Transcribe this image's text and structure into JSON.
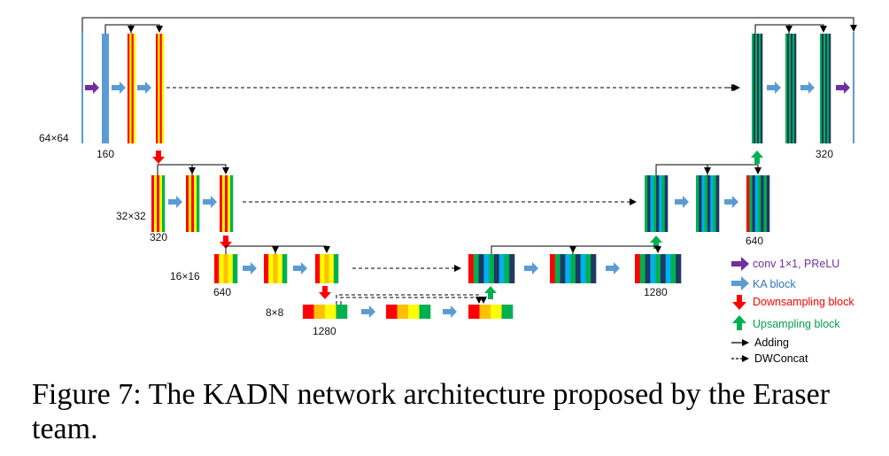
{
  "diagram": {
    "resolution_labels": [
      "64×64",
      "32×32",
      "16×16",
      "8×8"
    ],
    "channel_labels": [
      "160",
      "320",
      "640",
      "1280",
      "1280",
      "640",
      "320"
    ]
  },
  "legend": {
    "items": [
      {
        "symbol": "purple-arrow",
        "text": "conv 1×1, PReLU",
        "color": "#7030a0"
      },
      {
        "symbol": "blue-arrow",
        "text": "KA block",
        "color": "#2e75b6"
      },
      {
        "symbol": "red-arrow",
        "text": "Downsampling block",
        "color": "#ff0000"
      },
      {
        "symbol": "green-arrow",
        "text": "Upsampling block",
        "color": "#00a050"
      },
      {
        "symbol": "solid-arrow",
        "text": "Adding",
        "color": "#000000"
      },
      {
        "symbol": "dashed-arrow",
        "text": "DWConcat",
        "color": "#000000"
      }
    ]
  },
  "caption": "Figure 7: The KADN network architecture proposed by the Eraser team.",
  "colors": {
    "blue": "#5b9bd5",
    "purple": "#7030a0",
    "red": "#ff0000",
    "green": "#00b050",
    "yellow": "#ffff00",
    "orange": "#ffc000",
    "lightgreen": "#92d050",
    "navy": "#1f3864",
    "teal": "#00b0f0",
    "darkgreen": "#00b050"
  }
}
